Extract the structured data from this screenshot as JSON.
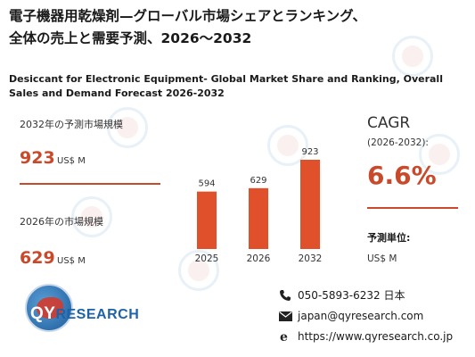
{
  "title_jp_line1": "電子機器用乾燥剤—グローバル市場シェアとランキング、",
  "title_jp_line2": "全体の売上と需要予測、2026～2032",
  "title_en": "Desiccant for Electronic Equipment- Global Market Share and Ranking, Overall Sales and Demand Forecast 2026-2032",
  "forecast": {
    "label": "2032年の予測市場規模",
    "value": "923",
    "unit": "US$ M"
  },
  "current": {
    "label": "2026年の市場規模",
    "value": "629",
    "unit": "US$ M"
  },
  "cagr": {
    "title": "CAGR",
    "period": "(2026-2032):",
    "value": "6.6%"
  },
  "unit_info": {
    "heading": "予測単位:",
    "value": "US$ M"
  },
  "logo": {
    "initial": "QY",
    "rest": "RESEARCH"
  },
  "contact": {
    "phone": "050-5893-6232 日本",
    "email": "japan@qyresearch.com",
    "website": "https://www.qyresearch.co.jp"
  },
  "colors": {
    "accent": "#c94a2b",
    "bar": "#e0502b",
    "brand_blue": "#1e63a8"
  },
  "chart_data": {
    "type": "bar",
    "categories": [
      "2025",
      "2026",
      "2032"
    ],
    "values": [
      594,
      629,
      923
    ],
    "value_labels": [
      "594",
      "629",
      "923"
    ],
    "ylim": [
      0,
      923
    ]
  }
}
